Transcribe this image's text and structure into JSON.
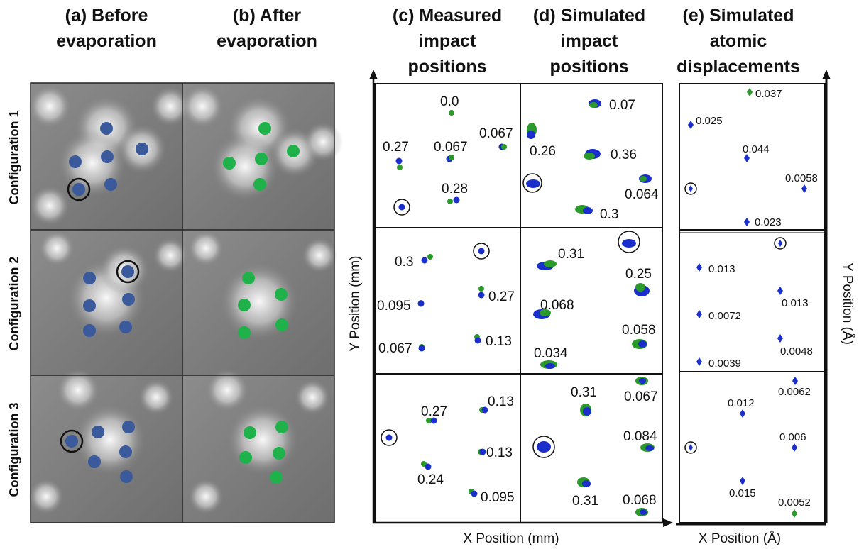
{
  "headers": {
    "a": [
      "(a) Before",
      "evaporation"
    ],
    "b": [
      "(b) After",
      "evaporation"
    ],
    "c": [
      "(c) Measured",
      "impact",
      "positions"
    ],
    "d": [
      "(d) Simulated",
      "impact",
      "positions"
    ],
    "e": [
      "(e) Simulated",
      "atomic",
      "displacements"
    ]
  },
  "configurations": [
    "Configuration 1",
    "Configuration 2",
    "Configuration 3"
  ],
  "axes": {
    "measured_simulated_x": "X Position (mm)",
    "measured_simulated_y": "Y Position (mm)",
    "atomic_x": "X Position (Å)",
    "atomic_y": "Y Position (Å)"
  },
  "colors": {
    "blue_dot": "#3a5a9c",
    "green_dot": "#1fb14a",
    "blue_marker": "#1a2ecc",
    "green_marker": "#2a9a2a"
  },
  "measured_values": {
    "config1": [
      "0.0",
      "0.067",
      "0.27",
      "0.067",
      "0.28"
    ],
    "config2": [
      "0.3",
      "0.27",
      "0.095",
      "0.067",
      "0.13"
    ],
    "config3": [
      "0.27",
      "0.13",
      "0.13",
      "0.24",
      "0.095"
    ]
  },
  "simulated_values": {
    "config1": [
      "0.07",
      "0.26",
      "0.36",
      "0.064",
      "0.3"
    ],
    "config2": [
      "0.31",
      "0.25",
      "0.068",
      "0.058",
      "0.034"
    ],
    "config3": [
      "0.31",
      "0.067",
      "0.084",
      "0.31",
      "0.068"
    ]
  },
  "displacement_values": {
    "config1": [
      "0.037",
      "0.025",
      "0.044",
      "0.0058",
      "0.023"
    ],
    "config2": [
      "0.013",
      "0.013",
      "0.0072",
      "0.0048",
      "0.0039"
    ],
    "config3": [
      "0.0062",
      "0.012",
      "0.006",
      "0.015",
      "0.0052"
    ]
  }
}
